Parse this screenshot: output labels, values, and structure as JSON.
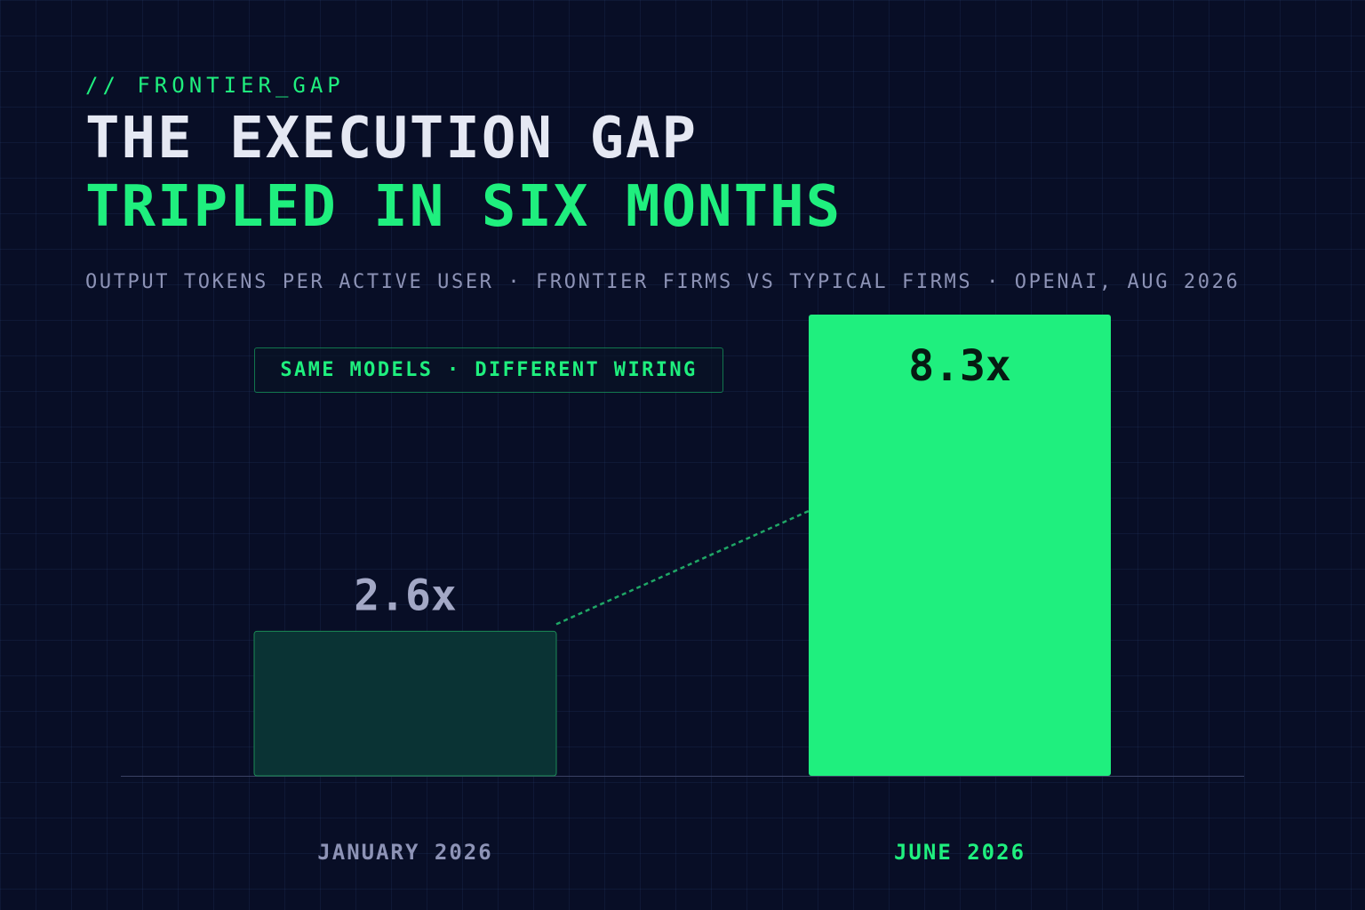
{
  "header": {
    "kicker": "// FRONTIER_GAP",
    "title_line1": "THE EXECUTION GAP",
    "title_line2": "TRIPLED IN SIX MONTHS",
    "subtitle": "OUTPUT TOKENS PER ACTIVE USER · FRONTIER FIRMS VS TYPICAL FIRMS · OPENAI, AUG 2026"
  },
  "callout": "SAME MODELS · DIFFERENT WIRING",
  "colors": {
    "background": "#080e26",
    "accent": "#1fef7e",
    "title": "#e5e8f3",
    "muted": "#8d93b6",
    "first_bar_fill": "#0a3334",
    "axis": "#3a4264"
  },
  "chart_data": {
    "type": "bar",
    "categories": [
      "JANUARY 2026",
      "JUNE 2026"
    ],
    "values": [
      2.6,
      8.3
    ],
    "value_labels": [
      "2.6x",
      "8.3x"
    ],
    "ylim": [
      0,
      8.3
    ],
    "grid": true,
    "legend": "none",
    "connector": "dashed line from top of first bar to second bar"
  }
}
